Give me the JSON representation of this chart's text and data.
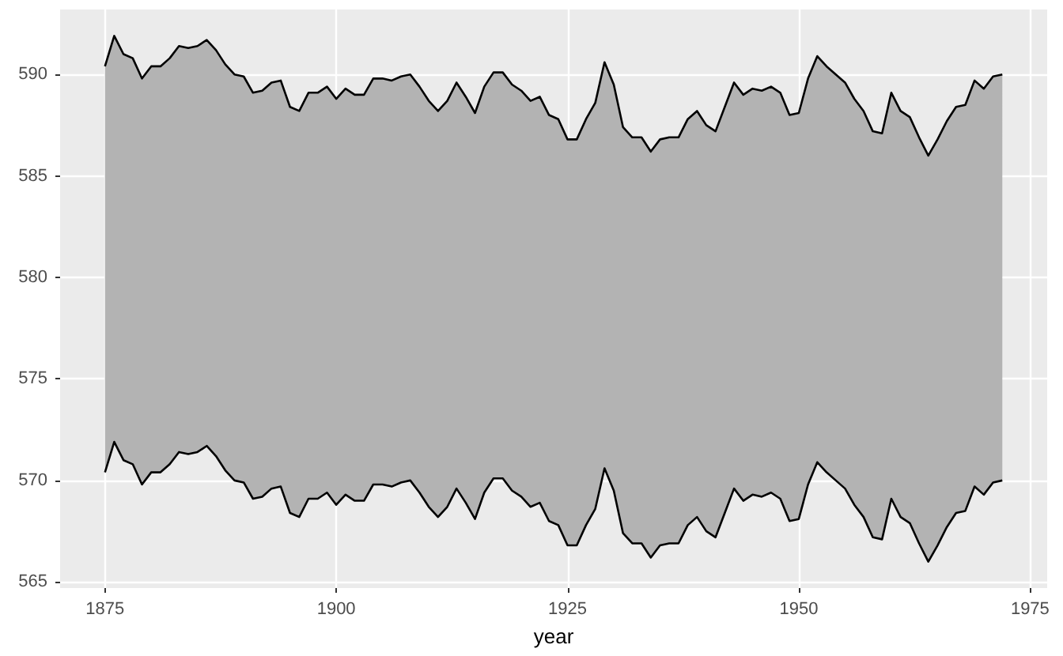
{
  "chart_data": {
    "type": "area",
    "xlabel": "year",
    "x": [
      1875,
      1876,
      1877,
      1878,
      1879,
      1880,
      1881,
      1882,
      1883,
      1884,
      1885,
      1886,
      1887,
      1888,
      1889,
      1890,
      1891,
      1892,
      1893,
      1894,
      1895,
      1896,
      1897,
      1898,
      1899,
      1900,
      1901,
      1902,
      1903,
      1904,
      1905,
      1906,
      1907,
      1908,
      1909,
      1910,
      1911,
      1912,
      1913,
      1914,
      1915,
      1916,
      1917,
      1918,
      1919,
      1920,
      1921,
      1922,
      1923,
      1924,
      1925,
      1926,
      1927,
      1928,
      1929,
      1930,
      1931,
      1932,
      1933,
      1934,
      1935,
      1936,
      1937,
      1938,
      1939,
      1940,
      1941,
      1942,
      1943,
      1944,
      1945,
      1946,
      1947,
      1948,
      1949,
      1950,
      1951,
      1952,
      1953,
      1954,
      1955,
      1956,
      1957,
      1958,
      1959,
      1960,
      1961,
      1962,
      1963,
      1964,
      1965,
      1966,
      1967,
      1968,
      1969,
      1970,
      1971,
      1972
    ],
    "series": [
      {
        "color": "#b3b3b3",
        "values": [
          590.4,
          591.9,
          591.0,
          590.8,
          589.8,
          590.4,
          590.4,
          590.8,
          591.4,
          591.3,
          591.4,
          591.7,
          591.2,
          590.5,
          590.0,
          589.9,
          589.1,
          589.2,
          589.6,
          589.7,
          588.4,
          588.2,
          589.1,
          589.1,
          589.4,
          588.8,
          589.3,
          589.0,
          589.0,
          589.8,
          589.8,
          589.7,
          589.9,
          590.0,
          589.4,
          588.7,
          588.2,
          588.7,
          589.6,
          588.9,
          588.1,
          589.4,
          590.1,
          590.1,
          589.5,
          589.2,
          588.7,
          588.9,
          588.0,
          587.8,
          586.8,
          586.8,
          587.8,
          588.6,
          590.6,
          589.5,
          587.4,
          586.9,
          586.9,
          586.2,
          586.8,
          586.9,
          586.9,
          587.8,
          588.2,
          587.5,
          587.2,
          588.4,
          589.6,
          589.0,
          589.3,
          589.2,
          589.4,
          589.1,
          588.0,
          588.1,
          589.8,
          590.9,
          590.4,
          590.0,
          589.6,
          588.8,
          588.2,
          587.2,
          587.1,
          589.1,
          588.2,
          587.9,
          586.9,
          586.0,
          586.8,
          587.7,
          588.4,
          588.5,
          589.7,
          589.3,
          589.9,
          590.0
        ]
      },
      {
        "type": "line",
        "color": "#000000",
        "values": [
          570.4,
          571.9,
          571.0,
          570.8,
          569.8,
          570.4,
          570.4,
          570.8,
          571.4,
          571.3,
          571.4,
          571.7,
          571.2,
          570.5,
          570.0,
          569.9,
          569.1,
          569.2,
          569.6,
          569.7,
          568.4,
          568.2,
          569.1,
          569.1,
          569.4,
          568.8,
          569.3,
          569.0,
          569.0,
          569.8,
          569.8,
          569.7,
          569.9,
          570.0,
          569.4,
          568.7,
          568.2,
          568.7,
          569.6,
          568.9,
          568.1,
          569.4,
          570.1,
          570.1,
          569.5,
          569.2,
          568.7,
          568.9,
          568.0,
          567.8,
          566.8,
          566.8,
          567.8,
          568.6,
          570.6,
          569.5,
          567.4,
          566.9,
          566.9,
          566.2,
          566.8,
          566.9,
          566.9,
          567.8,
          568.2,
          567.5,
          567.2,
          568.4,
          569.6,
          569.0,
          569.3,
          569.2,
          569.4,
          569.1,
          568.0,
          568.1,
          569.8,
          570.9,
          570.4,
          570.0,
          569.6,
          568.8,
          568.2,
          567.2,
          567.1,
          569.1,
          568.2,
          567.9,
          566.9,
          566.0,
          566.8,
          567.7,
          568.4,
          568.5,
          569.7,
          569.3,
          569.9,
          570.0
        ]
      }
    ],
    "xlim": [
      1870.15,
      1976.85
    ],
    "xticks": [
      1875,
      1900,
      1925,
      1950,
      1975
    ],
    "ylim": [
      564.7,
      593.2
    ],
    "yticks": [
      565,
      570,
      575,
      580,
      585,
      590
    ],
    "grid": true
  }
}
